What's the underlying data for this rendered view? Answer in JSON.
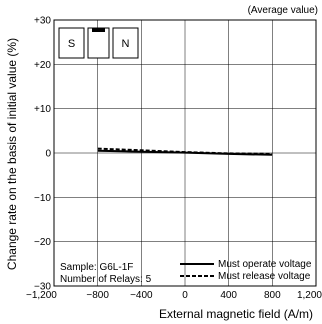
{
  "chart_data": {
    "type": "line",
    "note": "(Average value)",
    "xlabel": "External magnetic field (A/m)",
    "ylabel": "Change rate on the basis of initial value (%)",
    "xlim": [
      -1200,
      1200
    ],
    "ylim": [
      -30,
      30
    ],
    "x_ticks": [
      -1200,
      -800,
      -400,
      0,
      400,
      800,
      1200
    ],
    "x_tick_labels": [
      "−1,200",
      "−800",
      "−400",
      "0",
      "400",
      "800",
      "1,200"
    ],
    "y_ticks": [
      30,
      20,
      10,
      0,
      -10,
      -20,
      -30
    ],
    "y_tick_labels": [
      "+30",
      "+20",
      "+10",
      "0",
      "−10",
      "−20",
      "−30"
    ],
    "grid": true,
    "legend_position": "bottom-right",
    "series": [
      {
        "name": "Must operate voltage",
        "style": "solid",
        "x": [
          -800,
          -400,
          0,
          400,
          800
        ],
        "y": [
          0.5,
          0.3,
          0.1,
          -0.2,
          -0.4
        ]
      },
      {
        "name": "Must release voltage",
        "style": "dashed",
        "x": [
          -800,
          -400,
          0,
          400,
          800
        ],
        "y": [
          1.0,
          0.6,
          0.2,
          -0.1,
          -0.2
        ]
      }
    ],
    "sample_text": [
      "Sample: G6L-1F",
      "Number of Relays: 5"
    ],
    "magnet_labels": {
      "south": "S",
      "north": "N"
    }
  }
}
